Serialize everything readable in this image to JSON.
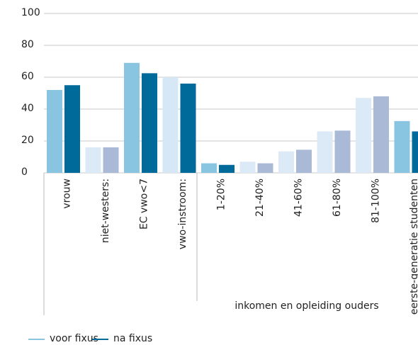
{
  "chart_data": {
    "type": "bar",
    "categories": [
      "vrouw",
      "niet-westers:",
      "EC vwo<7",
      "vwo-instroom:",
      "1-20%",
      "21-40%",
      "41-60%",
      "61-80%",
      "81-100%",
      "eerste-generatie studenten"
    ],
    "group_label": "inkomen en opleiding ouders",
    "series": [
      {
        "name": "voor fixus",
        "color": "#89c4e1",
        "values": [
          52,
          16,
          69,
          60,
          6,
          7,
          13.5,
          26,
          47,
          32.5
        ],
        "colors": [
          "#89c4e1",
          "#dbeaf6",
          "#89c4e1",
          "#d6e8f5",
          "#89c4e1",
          "#dbeaf6",
          "#dbeaf6",
          "#dbeaf6",
          "#dbeaf6",
          "#89c4e1"
        ]
      },
      {
        "name": "na fixus",
        "color": "#006a9b",
        "values": [
          55,
          16,
          62.5,
          56,
          5,
          6,
          14.5,
          26.5,
          48,
          26
        ],
        "colors": [
          "#006a9b",
          "#a9b9d6",
          "#006a9b",
          "#006a9b",
          "#006a9b",
          "#a9b9d6",
          "#a9b9d6",
          "#a9b9d6",
          "#a9b9d6",
          "#006a9b"
        ]
      }
    ],
    "ylim": [
      0,
      100
    ],
    "yticks": [
      0,
      20,
      40,
      60,
      80,
      100
    ],
    "grid": true
  }
}
